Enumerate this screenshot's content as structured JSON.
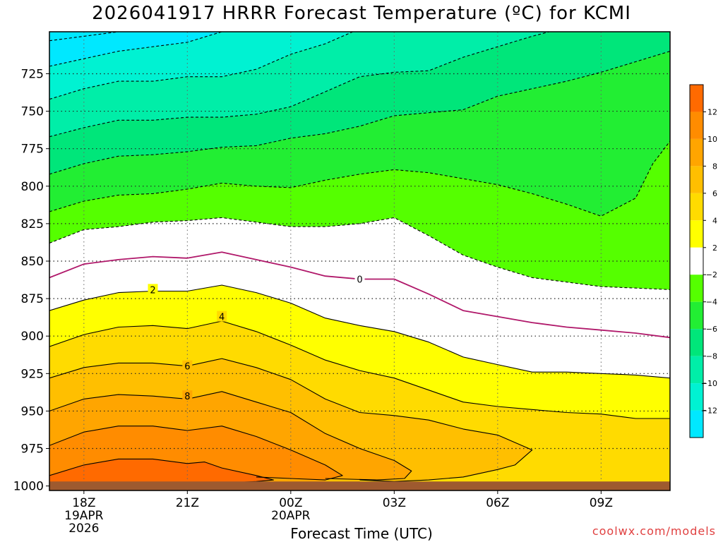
{
  "title": "2026041917 HRRR Forecast Temperature (ºC) for KCMI",
  "credit": "coolwx.com/models",
  "colors": {
    "ground": "#9e5a2f",
    "zero_contour": "#b0186a",
    "frame": "#000000"
  },
  "chart_data": {
    "type": "heatmap",
    "title": "2026041917 HRRR Forecast Temperature (ºC) for KCMI",
    "xlabel": "Forecast Time (UTC)",
    "ylabel": "",
    "y_axis": {
      "inverted": true,
      "range": [
        1003,
        697
      ],
      "ticks": [
        725,
        750,
        775,
        800,
        825,
        850,
        875,
        900,
        925,
        950,
        975,
        1000
      ]
    },
    "x_axis": {
      "range_hours": [
        -1,
        17
      ],
      "ticks": [
        {
          "hour": 0,
          "label": "18Z",
          "sub": [
            "19APR",
            "2026"
          ]
        },
        {
          "hour": 3,
          "label": "21Z",
          "sub": []
        },
        {
          "hour": 6,
          "label": "00Z",
          "sub": [
            "20APR"
          ]
        },
        {
          "hour": 9,
          "label": "03Z",
          "sub": []
        },
        {
          "hour": 12,
          "label": "06Z",
          "sub": []
        },
        {
          "hour": 15,
          "label": "09Z",
          "sub": []
        }
      ]
    },
    "grid": true,
    "colorbar": {
      "position": "right",
      "bands": [
        {
          "min": 12,
          "max": 14,
          "color": "#ff6a00"
        },
        {
          "min": 10,
          "max": 12,
          "color": "#ff8c00"
        },
        {
          "min": 8,
          "max": 10,
          "color": "#ffa500"
        },
        {
          "min": 6,
          "max": 8,
          "color": "#ffbf00"
        },
        {
          "min": 4,
          "max": 6,
          "color": "#ffdb00"
        },
        {
          "min": 2,
          "max": 4,
          "color": "#ffff00"
        },
        {
          "min": -2,
          "max": 2,
          "color": "#ffffff"
        },
        {
          "min": -4,
          "max": -2,
          "color": "#55ff00"
        },
        {
          "min": -6,
          "max": -4,
          "color": "#22ee33"
        },
        {
          "min": -8,
          "max": -6,
          "color": "#00e67a"
        },
        {
          "min": -10,
          "max": -8,
          "color": "#00eea8"
        },
        {
          "min": -12,
          "max": -10,
          "color": "#00f2d2"
        },
        {
          "min": -14,
          "max": -12,
          "color": "#00e8ff"
        }
      ],
      "tick_labels": [
        "12",
        "10",
        "8",
        "6",
        "4",
        "2",
        "−2",
        "−4",
        "−6",
        "−8",
        "−10",
        "−12"
      ]
    },
    "contour_labels": [
      {
        "value": "0",
        "hour": 8.0,
        "p": 862
      },
      {
        "value": "2",
        "hour": 2.0,
        "p": 869
      },
      {
        "value": "4",
        "hour": 4.0,
        "p": 887
      },
      {
        "value": "6",
        "hour": 3.0,
        "p": 920
      },
      {
        "value": "8",
        "hour": 3.0,
        "p": 940
      }
    ],
    "isotherms": [
      {
        "value": -14,
        "color": "#00e8ff",
        "style": "dashed",
        "points": [
          [
            -1,
            703
          ],
          [
            0,
            700
          ],
          [
            1,
            697
          ]
        ]
      },
      {
        "value": -12,
        "color": "#00f2d2",
        "style": "dashed",
        "points": [
          [
            -1,
            720
          ],
          [
            0,
            715
          ],
          [
            1,
            710
          ],
          [
            2,
            707
          ],
          [
            3,
            704
          ],
          [
            4,
            697
          ],
          [
            4.2,
            697
          ]
        ]
      },
      {
        "value": -10,
        "color": "#00eea8",
        "style": "dashed",
        "points": [
          [
            -1,
            742
          ],
          [
            0,
            735
          ],
          [
            1,
            730
          ],
          [
            2,
            730
          ],
          [
            3,
            727
          ],
          [
            4,
            727
          ],
          [
            5,
            722
          ],
          [
            6,
            712
          ],
          [
            7,
            705
          ],
          [
            7.8,
            697
          ],
          [
            9,
            697
          ]
        ]
      },
      {
        "value": -8,
        "color": "#00e67a",
        "style": "dashed",
        "points": [
          [
            -1,
            767
          ],
          [
            0,
            761
          ],
          [
            1,
            756
          ],
          [
            2,
            756
          ],
          [
            3,
            754
          ],
          [
            4,
            754
          ],
          [
            5,
            752
          ],
          [
            6,
            747
          ],
          [
            7,
            737
          ],
          [
            8,
            727
          ],
          [
            9,
            724
          ],
          [
            10,
            723
          ],
          [
            11,
            714
          ],
          [
            12,
            707
          ],
          [
            13,
            700
          ],
          [
            13.5,
            697
          ],
          [
            17,
            697
          ]
        ]
      },
      {
        "value": -6,
        "color": "#22ee33",
        "style": "dashed",
        "points": [
          [
            -1,
            792
          ],
          [
            0,
            785
          ],
          [
            1,
            780
          ],
          [
            2,
            779
          ],
          [
            3,
            777
          ],
          [
            4,
            774
          ],
          [
            5,
            773
          ],
          [
            6,
            768
          ],
          [
            7,
            765
          ],
          [
            8,
            760
          ],
          [
            9,
            753
          ],
          [
            10,
            751
          ],
          [
            11,
            749
          ],
          [
            12,
            740
          ],
          [
            13,
            735
          ],
          [
            14,
            730
          ],
          [
            15,
            724
          ],
          [
            16,
            717
          ],
          [
            17,
            710
          ]
        ]
      },
      {
        "value": -4,
        "color": "#55ff00",
        "style": "dashed",
        "points": [
          [
            -1,
            817
          ],
          [
            0,
            810
          ],
          [
            1,
            806
          ],
          [
            2,
            805
          ],
          [
            3,
            802
          ],
          [
            4,
            798
          ],
          [
            5,
            800
          ],
          [
            6,
            801
          ],
          [
            7,
            796
          ],
          [
            8,
            792
          ],
          [
            9,
            789
          ],
          [
            10,
            791
          ],
          [
            11,
            795
          ],
          [
            12,
            799
          ],
          [
            13,
            805
          ],
          [
            14,
            812
          ],
          [
            15,
            820
          ],
          [
            16,
            808
          ],
          [
            16.5,
            785
          ],
          [
            17,
            770
          ]
        ]
      },
      {
        "value": -2,
        "color": "#000000",
        "style": "dashed",
        "points": [
          [
            -1,
            838
          ],
          [
            0,
            829
          ],
          [
            1,
            827
          ],
          [
            2,
            824
          ],
          [
            3,
            823
          ],
          [
            4,
            821
          ],
          [
            5,
            824
          ],
          [
            6,
            827
          ],
          [
            7,
            827
          ],
          [
            8,
            825
          ],
          [
            9,
            821
          ],
          [
            10,
            833
          ],
          [
            11,
            846
          ],
          [
            12,
            854
          ],
          [
            13,
            861
          ],
          [
            14,
            864
          ],
          [
            15,
            867
          ],
          [
            16,
            868
          ],
          [
            17,
            869
          ]
        ]
      },
      {
        "value": 0,
        "color": "#b0186a",
        "style": "solid",
        "points": [
          [
            -1,
            861
          ],
          [
            0,
            852
          ],
          [
            1,
            849
          ],
          [
            2,
            847
          ],
          [
            3,
            848
          ],
          [
            4,
            844
          ],
          [
            5,
            849
          ],
          [
            6,
            854
          ],
          [
            7,
            860
          ],
          [
            8,
            862
          ],
          [
            9,
            862
          ],
          [
            10,
            872
          ],
          [
            11,
            883
          ],
          [
            12,
            887
          ],
          [
            13,
            891
          ],
          [
            14,
            894
          ],
          [
            15,
            896
          ],
          [
            16,
            898
          ],
          [
            17,
            901
          ]
        ]
      },
      {
        "value": 2,
        "color": "#000000",
        "style": "solid",
        "points": [
          [
            -1,
            883
          ],
          [
            0,
            876
          ],
          [
            1,
            871
          ],
          [
            2,
            870
          ],
          [
            3,
            870
          ],
          [
            4,
            866
          ],
          [
            5,
            871
          ],
          [
            6,
            878
          ],
          [
            7,
            888
          ],
          [
            8,
            893
          ],
          [
            9,
            897
          ],
          [
            10,
            904
          ],
          [
            11,
            914
          ],
          [
            12,
            919
          ],
          [
            13,
            924
          ],
          [
            14,
            924
          ],
          [
            15,
            925
          ],
          [
            16,
            926
          ],
          [
            17,
            928
          ]
        ]
      },
      {
        "value": 4,
        "color": "#000000",
        "style": "solid",
        "points": [
          [
            -1,
            907
          ],
          [
            0,
            899
          ],
          [
            1,
            894
          ],
          [
            2,
            893
          ],
          [
            3,
            895
          ],
          [
            4,
            890
          ],
          [
            5,
            897
          ],
          [
            6,
            906
          ],
          [
            7,
            916
          ],
          [
            8,
            923
          ],
          [
            9,
            928
          ],
          [
            10,
            936
          ],
          [
            11,
            944
          ],
          [
            12,
            947
          ],
          [
            13,
            949
          ],
          [
            14,
            951
          ],
          [
            15,
            952
          ],
          [
            16,
            955
          ],
          [
            17,
            955
          ]
        ]
      },
      {
        "value": 6,
        "color": "#000000",
        "style": "solid",
        "points": [
          [
            -1,
            928
          ],
          [
            0,
            921
          ],
          [
            1,
            918
          ],
          [
            2,
            918
          ],
          [
            3,
            920
          ],
          [
            4,
            915
          ],
          [
            5,
            921
          ],
          [
            6,
            929
          ],
          [
            7,
            942
          ],
          [
            8,
            951
          ],
          [
            9,
            953
          ],
          [
            10,
            956
          ],
          [
            11,
            962
          ],
          [
            12,
            966
          ],
          [
            13,
            976
          ],
          [
            12.5,
            986
          ],
          [
            12,
            989
          ],
          [
            11,
            994
          ],
          [
            10,
            996
          ],
          [
            9,
            997
          ],
          [
            8,
            996
          ]
        ]
      },
      {
        "value": 8,
        "color": "#000000",
        "style": "solid",
        "points": [
          [
            -1,
            950
          ],
          [
            0,
            942
          ],
          [
            1,
            939
          ],
          [
            2,
            940
          ],
          [
            3,
            942
          ],
          [
            4,
            937
          ],
          [
            5,
            944
          ],
          [
            6,
            951
          ],
          [
            7,
            965
          ],
          [
            8,
            975
          ],
          [
            9,
            983
          ],
          [
            9.5,
            990
          ],
          [
            9.3,
            995
          ],
          [
            8.5,
            996
          ],
          [
            7,
            995
          ]
        ]
      },
      {
        "value": 10,
        "color": "#000000",
        "style": "solid",
        "points": [
          [
            -1,
            973
          ],
          [
            0,
            964
          ],
          [
            1,
            960
          ],
          [
            2,
            960
          ],
          [
            3,
            963
          ],
          [
            4,
            960
          ],
          [
            5,
            967
          ],
          [
            6,
            976
          ],
          [
            7,
            986
          ],
          [
            7.5,
            993
          ],
          [
            7,
            996
          ],
          [
            6,
            995
          ],
          [
            5,
            994
          ]
        ]
      },
      {
        "value": 12,
        "color": "#000000",
        "style": "solid",
        "points": [
          [
            -1,
            993
          ],
          [
            0,
            986
          ],
          [
            1,
            982
          ],
          [
            2,
            982
          ],
          [
            3,
            985
          ],
          [
            3.5,
            984
          ],
          [
            4,
            988
          ],
          [
            5,
            993
          ],
          [
            5.5,
            996
          ],
          [
            5,
            997
          ],
          [
            4,
            998
          ]
        ]
      }
    ],
    "ground": {
      "color": "#9e5a2f",
      "p_top": 997
    }
  }
}
